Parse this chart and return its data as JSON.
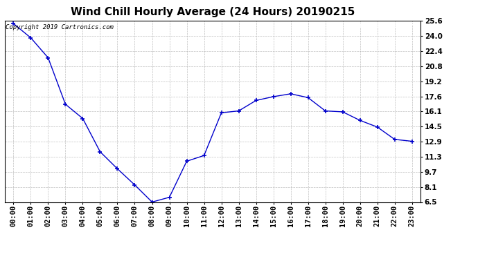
{
  "title": "Wind Chill Hourly Average (24 Hours) 20190215",
  "copyright": "Copyright 2019 Cartronics.com",
  "x_labels": [
    "00:00",
    "01:00",
    "02:00",
    "03:00",
    "04:00",
    "05:00",
    "06:00",
    "07:00",
    "08:00",
    "09:00",
    "10:00",
    "11:00",
    "12:00",
    "13:00",
    "14:00",
    "15:00",
    "16:00",
    "17:00",
    "18:00",
    "19:00",
    "20:00",
    "21:00",
    "22:00",
    "23:00"
  ],
  "y_values": [
    25.3,
    23.8,
    21.7,
    16.8,
    15.3,
    11.8,
    10.0,
    8.3,
    6.5,
    7.0,
    10.8,
    11.4,
    15.9,
    16.1,
    17.2,
    17.6,
    17.9,
    17.5,
    16.1,
    16.0,
    15.1,
    14.4,
    13.1,
    12.9
  ],
  "ylim_min": 6.5,
  "ylim_max": 25.6,
  "yticks": [
    6.5,
    8.1,
    9.7,
    11.3,
    12.9,
    14.5,
    16.1,
    17.6,
    19.2,
    20.8,
    22.4,
    24.0,
    25.6
  ],
  "line_color": "#0000cc",
  "marker": "+",
  "marker_color": "#000080",
  "bg_color": "#ffffff",
  "plot_bg_color": "#ffffff",
  "grid_color": "#b0b0b0",
  "title_fontsize": 11,
  "tick_fontsize": 7.5,
  "legend_bg": "#0000cc",
  "legend_text_color": "#ffffff",
  "copyright_fontsize": 6.5
}
